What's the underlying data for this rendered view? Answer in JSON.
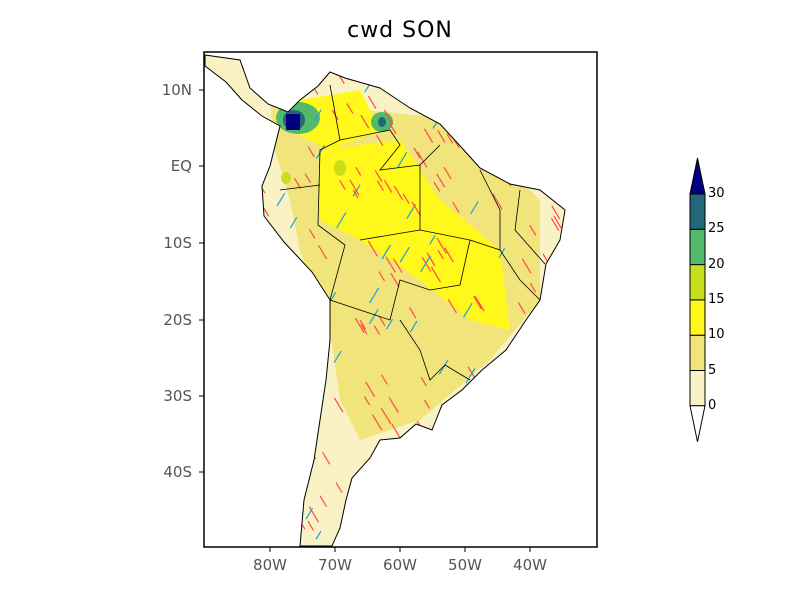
{
  "title": "cwd SON",
  "y_axis_labels": [
    "10N",
    "EQ",
    "10S",
    "20S",
    "30S",
    "40S"
  ],
  "x_axis_labels": [
    "80W",
    "70W",
    "60W",
    "50W",
    "40W"
  ],
  "colorbar": {
    "labels": [
      "0",
      "5",
      "10",
      "15",
      "20",
      "25",
      "30"
    ],
    "colors": [
      "#f8f2c4",
      "#f0e47a",
      "#fff81a",
      "#c8e01c",
      "#52b86a",
      "#22687a",
      "#00007e"
    ],
    "below_color": "#ffffff"
  },
  "hatch_colors": {
    "positive": "#ff4a4a",
    "negative": "#1aa0e6"
  }
}
